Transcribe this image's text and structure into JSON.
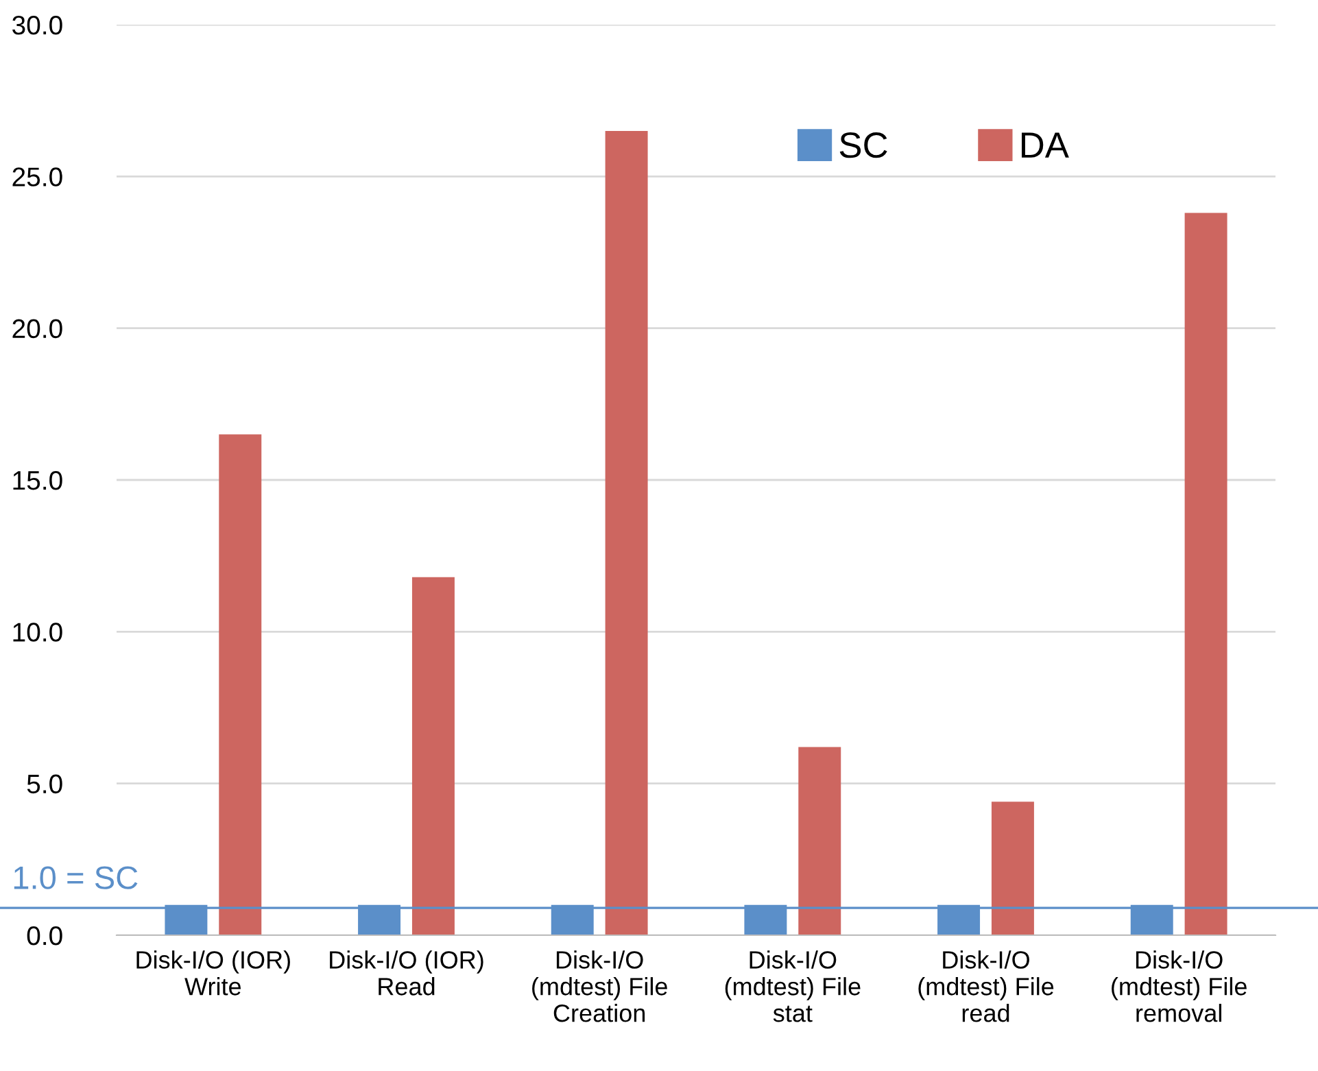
{
  "chart_data": {
    "type": "bar",
    "categories": [
      "Disk-I/O (IOR)\nWrite",
      "Disk-I/O (IOR)\nRead",
      "Disk-I/O\n(mdtest) File\nCreation",
      "Disk-I/O\n(mdtest) File\nstat",
      "Disk-I/O\n(mdtest) File\nread",
      "Disk-I/O\n(mdtest) File\nremoval"
    ],
    "series": [
      {
        "name": "SC",
        "color": "#5b8fc9",
        "values": [
          1.0,
          1.0,
          1.0,
          1.0,
          1.0,
          1.0
        ]
      },
      {
        "name": "DA",
        "color": "#cd6660",
        "values": [
          16.5,
          11.8,
          26.5,
          6.2,
          4.4,
          23.8
        ]
      }
    ],
    "ylim": [
      0,
      30
    ],
    "yticks": [
      {
        "value": 0,
        "label": "0.0"
      },
      {
        "value": 5,
        "label": "5.0"
      },
      {
        "value": 10,
        "label": "10.0"
      },
      {
        "value": 15,
        "label": "15.0"
      },
      {
        "value": 20,
        "label": "20.0"
      },
      {
        "value": 25,
        "label": "25.0"
      },
      {
        "value": 30,
        "label": "30.0"
      }
    ],
    "grid": "y",
    "legend": "top right",
    "ref_lines": [
      {
        "axis": "y",
        "value": 0.9,
        "label": "1.0 = SC",
        "color": "#5b8fc9"
      }
    ]
  }
}
